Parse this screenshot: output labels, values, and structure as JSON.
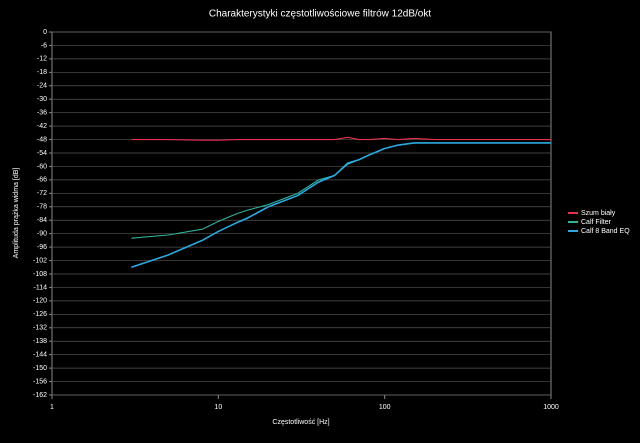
{
  "chart_data": {
    "type": "line",
    "title": "Charakterystyki częstotliwościowe filtrów 12dB/okt",
    "x_label": "Częstotliwość [Hz]",
    "y_label": "Amplituda prążka widma [dB]",
    "x_scale": "log",
    "grid": true,
    "legend_position": "right",
    "xlim": [
      1,
      1000
    ],
    "xticks": [
      1,
      10,
      100,
      1000
    ],
    "ylim": [
      -162,
      0
    ],
    "yticks": [
      0,
      -6,
      -12,
      -18,
      -24,
      -30,
      -36,
      -42,
      -48,
      -54,
      -60,
      -66,
      -72,
      -78,
      -84,
      -90,
      -96,
      -102,
      -108,
      -114,
      -120,
      -126,
      -132,
      -138,
      -144,
      -150,
      -156,
      -162
    ],
    "x": [
      3,
      5,
      8,
      10,
      13,
      15,
      20,
      30,
      40,
      50,
      60,
      70,
      80,
      100,
      120,
      150,
      200,
      300,
      500,
      700,
      1000
    ],
    "series": [
      {
        "name": "Szum biały",
        "color": "#e8304a",
        "values": [
          -48,
          -48,
          -48.3,
          -48.3,
          -48,
          -48,
          -48,
          -48,
          -48,
          -48,
          -47,
          -48,
          -48,
          -47.5,
          -48,
          -47.5,
          -48,
          -48,
          -48,
          -48,
          -48
        ]
      },
      {
        "name": "Calf Filter",
        "color": "#2fb39a",
        "values": [
          -92,
          -90.6,
          -88,
          -84.5,
          -81,
          -79.5,
          -77,
          -72,
          -66,
          -64,
          -59,
          -57,
          -55,
          -52,
          -50.5,
          -49.5,
          -49.5,
          -49.5,
          -49.5,
          -49.5,
          -49.5
        ]
      },
      {
        "name": "Calf 8 Band EQ",
        "color": "#2ea8e0",
        "values": [
          -105,
          -99.5,
          -93,
          -89,
          -85,
          -83,
          -78,
          -73,
          -67,
          -64,
          -58.5,
          -57,
          -55,
          -52,
          -50.5,
          -49.5,
          -49.5,
          -49.5,
          -49.5,
          -49.5,
          -49.5
        ]
      }
    ]
  }
}
